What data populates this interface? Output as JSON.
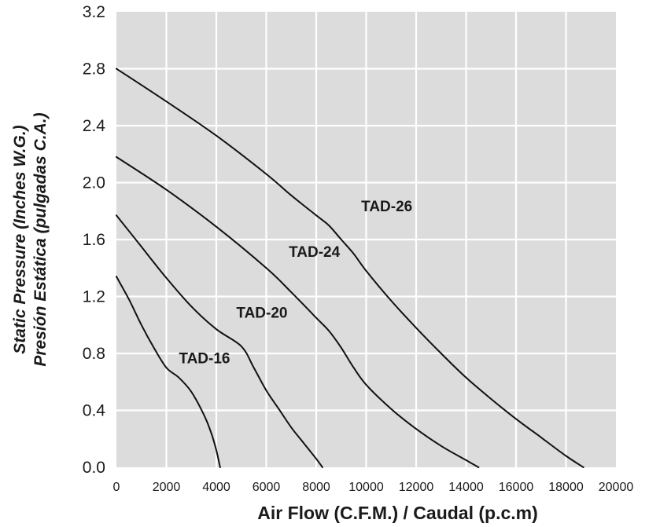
{
  "chart_data": {
    "type": "line",
    "title": "",
    "xlabel": "Air Flow (C.F.M.) / Caudal (p.c.m)",
    "ylabel_line1": "Static Pressure (Inches W.G.)",
    "ylabel_line2": "Presión Estática (pulgadas C.A.)",
    "xlim": [
      0,
      20000
    ],
    "ylim": [
      0,
      3.2
    ],
    "x_ticks": [
      "0",
      "2000",
      "4000",
      "6000",
      "8000",
      "10000",
      "12000",
      "14000",
      "16000",
      "18000",
      "20000"
    ],
    "y_ticks": [
      "0.0",
      "0.4",
      "0.8",
      "1.2",
      "1.6",
      "2.0",
      "2.4",
      "2.8",
      "3.2"
    ],
    "grid": true,
    "background": "#dcdcdc",
    "series": [
      {
        "name": "TAD-16",
        "label_at": [
          2500,
          0.73
        ],
        "x": [
          0,
          500,
          1000,
          1500,
          2000,
          2500,
          3000,
          3500,
          3800,
          4000,
          4150
        ],
        "y": [
          1.34,
          1.18,
          1.0,
          0.84,
          0.7,
          0.63,
          0.53,
          0.37,
          0.24,
          0.12,
          0.0
        ]
      },
      {
        "name": "TAD-20",
        "label_at": [
          4800,
          1.05
        ],
        "x": [
          0,
          1000,
          2000,
          3000,
          4000,
          5000,
          5500,
          6000,
          6500,
          7000,
          7500,
          8000,
          8250
        ],
        "y": [
          1.77,
          1.55,
          1.33,
          1.13,
          0.97,
          0.85,
          0.7,
          0.54,
          0.41,
          0.28,
          0.17,
          0.06,
          0.0
        ]
      },
      {
        "name": "TAD-24",
        "label_at": [
          6900,
          1.48
        ],
        "x": [
          0,
          2000,
          4000,
          6000,
          7000,
          8000,
          8500,
          9000,
          9500,
          10000,
          11000,
          12000,
          13000,
          14000,
          14500
        ],
        "y": [
          2.18,
          1.95,
          1.69,
          1.4,
          1.23,
          1.05,
          0.96,
          0.84,
          0.7,
          0.58,
          0.41,
          0.27,
          0.15,
          0.05,
          0.0
        ]
      },
      {
        "name": "TAD-26",
        "label_at": [
          9800,
          1.8
        ],
        "x": [
          0,
          2000,
          4000,
          6000,
          7000,
          8000,
          8500,
          9000,
          9500,
          10000,
          11000,
          12000,
          13000,
          14000,
          15000,
          16000,
          17000,
          18000,
          18700
        ],
        "y": [
          2.8,
          2.57,
          2.33,
          2.06,
          1.91,
          1.77,
          1.7,
          1.6,
          1.5,
          1.38,
          1.17,
          0.98,
          0.8,
          0.63,
          0.48,
          0.34,
          0.21,
          0.08,
          0.0
        ]
      }
    ]
  }
}
